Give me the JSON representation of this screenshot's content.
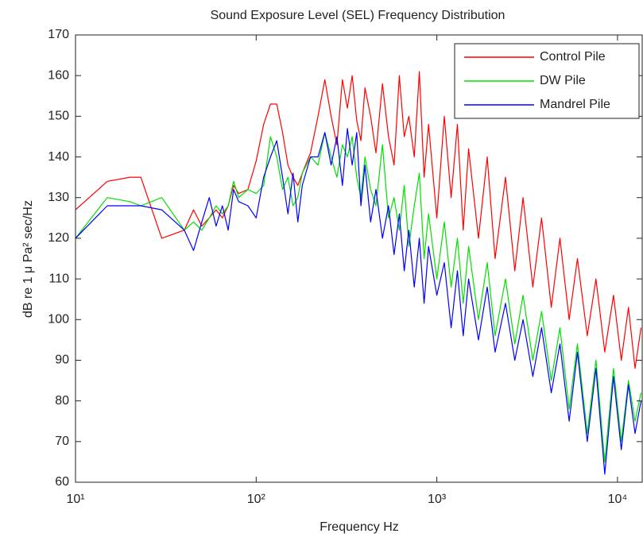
{
  "chart_data": {
    "type": "line",
    "title": "Sound Exposure Level (SEL) Frequency Distribution",
    "x_label": "Frequency Hz",
    "y_label": "dB re 1 μ Pa² sec/Hz",
    "xscale": "log",
    "xlim": [
      10,
      13700
    ],
    "ylim": [
      60,
      170
    ],
    "xticks": [
      {
        "value": 10,
        "label": "10¹"
      },
      {
        "value": 100,
        "label": "10²"
      },
      {
        "value": 1000,
        "label": "10³"
      },
      {
        "value": 10000,
        "label": "10⁴"
      }
    ],
    "yticks": [
      60,
      70,
      80,
      90,
      100,
      110,
      120,
      130,
      140,
      150,
      160,
      170
    ],
    "legend": "northeast",
    "x": [
      10,
      15,
      20,
      23,
      30,
      40,
      45,
      50,
      55,
      60,
      65,
      70,
      75,
      80,
      90,
      100,
      110,
      120,
      130,
      140,
      150,
      160,
      170,
      180,
      200,
      220,
      240,
      260,
      280,
      300,
      320,
      340,
      360,
      380,
      400,
      430,
      460,
      500,
      540,
      580,
      620,
      660,
      700,
      750,
      800,
      850,
      900,
      1000,
      1100,
      1200,
      1300,
      1400,
      1500,
      1700,
      1900,
      2100,
      2400,
      2700,
      3000,
      3400,
      3800,
      4300,
      4800,
      5400,
      6000,
      6800,
      7600,
      8500,
      9500,
      10500,
      11500,
      12500,
      13500
    ],
    "series": [
      {
        "name": "Control Pile",
        "color": "#ff0000",
        "values": [
          127,
          134,
          135,
          135,
          120,
          122,
          127,
          123,
          125,
          127,
          125,
          128,
          133,
          131,
          132,
          139,
          148,
          153,
          153,
          146,
          138,
          135,
          133,
          136,
          141,
          150,
          159,
          150,
          143,
          159,
          152,
          160,
          149,
          144,
          157,
          150,
          141,
          158,
          145,
          138,
          160,
          145,
          150,
          140,
          161,
          135,
          148,
          125,
          150,
          130,
          148,
          122,
          142,
          120,
          140,
          115,
          135,
          112,
          130,
          108,
          125,
          103,
          120,
          100,
          115,
          96,
          110,
          92,
          106,
          90,
          103,
          88,
          98
        ]
      },
      {
        "name": "DW Pile",
        "color": "#00e000",
        "values": [
          120,
          130,
          129,
          128,
          130,
          122,
          124,
          122,
          125,
          128,
          126,
          128,
          134,
          130,
          132,
          131,
          133,
          145,
          140,
          132,
          135,
          128,
          130,
          136,
          140,
          138,
          146,
          140,
          135,
          143,
          140,
          145,
          135,
          130,
          140,
          132,
          128,
          143,
          125,
          130,
          122,
          133,
          118,
          128,
          136,
          115,
          126,
          110,
          124,
          108,
          120,
          104,
          118,
          100,
          114,
          96,
          110,
          94,
          106,
          90,
          102,
          85,
          98,
          78,
          94,
          72,
          90,
          65,
          88,
          70,
          85,
          75,
          82
        ]
      },
      {
        "name": "Mandrel Pile",
        "color": "#0000ff",
        "values": [
          120,
          128,
          128,
          128,
          127,
          122,
          117,
          124,
          130,
          123,
          128,
          122,
          132,
          129,
          128,
          125,
          135,
          140,
          144,
          135,
          126,
          136,
          124,
          133,
          140,
          140,
          146,
          138,
          145,
          133,
          147,
          138,
          146,
          128,
          138,
          124,
          132,
          120,
          128,
          116,
          126,
          112,
          122,
          108,
          120,
          104,
          118,
          106,
          114,
          98,
          112,
          96,
          110,
          95,
          108,
          92,
          104,
          90,
          100,
          86,
          98,
          82,
          94,
          75,
          92,
          70,
          88,
          62,
          86,
          68,
          84,
          72,
          80
        ]
      }
    ]
  }
}
